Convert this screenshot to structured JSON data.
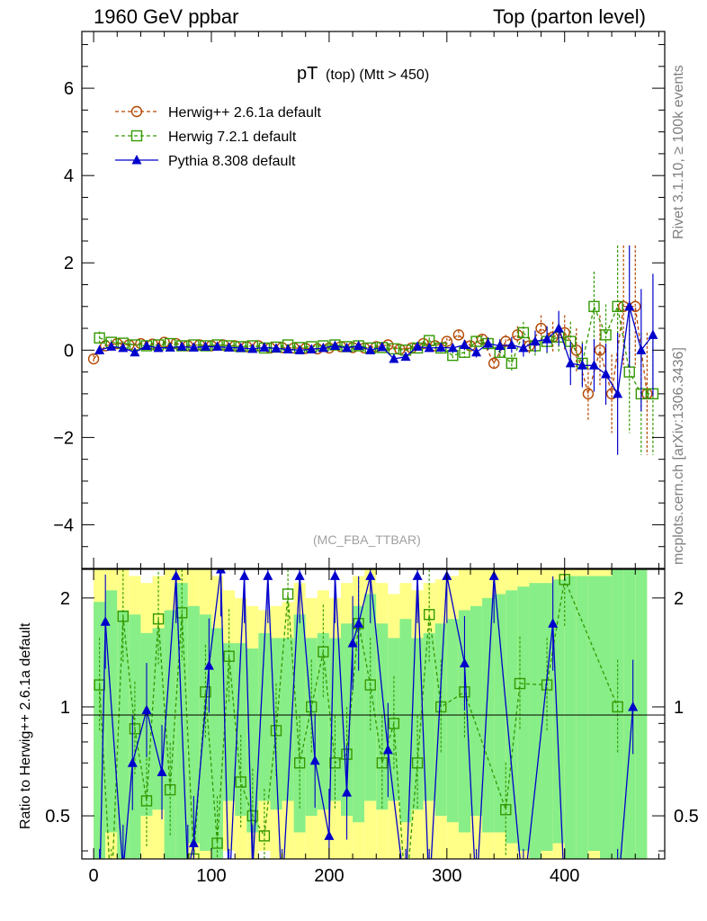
{
  "header": {
    "left": "1960 GeV ppbar",
    "right": "Top (parton level)"
  },
  "side_labels": {
    "rivet": "Rivet 3.1.10, ≥ 100k events",
    "mcplots": "mcplots.cern.ch [arXiv:1306.3436]"
  },
  "chart_data": {
    "type": "line",
    "title_main": "pT",
    "title_sub": "(top) (Mtt > 450)",
    "watermark": "(MC_FBA_TTBAR)",
    "xlim": [
      -10,
      485
    ],
    "ylim": [
      -5,
      7.3
    ],
    "xticks": [
      0,
      100,
      200,
      300,
      400
    ],
    "yticks": [
      -4,
      -2,
      0,
      2,
      4,
      6
    ],
    "ratio_ylabel": "Ratio to Herwig++ 2.6.1a default",
    "ratio_ylim": [
      0.38,
      2.4
    ],
    "ratio_yticks": [
      0.5,
      1,
      2
    ],
    "ratio_ytick_labels": [
      "0.5",
      "1",
      "2"
    ],
    "colors": {
      "herwigpp": "#b34700",
      "herwig7": "#339900",
      "pythia": "#0000cc",
      "band_yellow": "#ffff88",
      "band_green": "#88ee88"
    },
    "series": [
      {
        "name": "Herwig++ 2.6.1a default",
        "marker": "circle",
        "x": [
          0,
          10,
          20,
          30,
          40,
          50,
          60,
          70,
          80,
          90,
          100,
          110,
          120,
          130,
          140,
          150,
          160,
          170,
          180,
          190,
          200,
          210,
          220,
          230,
          240,
          250,
          260,
          270,
          280,
          290,
          300,
          310,
          320,
          330,
          340,
          350,
          360,
          370,
          380,
          390,
          400,
          410,
          420,
          430,
          440,
          450,
          460,
          470
        ],
        "y": [
          -0.2,
          0.1,
          0.15,
          0.12,
          0.15,
          0.14,
          0.18,
          0.15,
          0.1,
          0.12,
          0.1,
          0.12,
          0.1,
          0.08,
          0.1,
          0.05,
          0.06,
          0.05,
          0.04,
          0.03,
          0.05,
          0.08,
          0.06,
          0.05,
          0.08,
          0.12,
          0.02,
          0.05,
          0.15,
          0.1,
          0.2,
          0.35,
          0.1,
          0.25,
          -0.3,
          0.2,
          0.35,
          0.1,
          0.5,
          0.3,
          0.4,
          0.0,
          -1.0,
          0.0,
          -1.0,
          1.0,
          1.0,
          -1.0
        ],
        "err": [
          0.1,
          0.05,
          0.04,
          0.03,
          0.03,
          0.03,
          0.03,
          0.03,
          0.02,
          0.02,
          0.02,
          0.02,
          0.02,
          0.02,
          0.02,
          0.02,
          0.02,
          0.02,
          0.02,
          0.02,
          0.02,
          0.03,
          0.03,
          0.03,
          0.04,
          0.04,
          0.05,
          0.05,
          0.06,
          0.07,
          0.08,
          0.1,
          0.1,
          0.12,
          0.15,
          0.15,
          0.2,
          0.2,
          0.3,
          0.35,
          0.4,
          0.5,
          0.6,
          0.8,
          0.9,
          1.4,
          1.4,
          1.4
        ]
      },
      {
        "name": "Herwig 7.2.1 default",
        "marker": "square",
        "x": [
          5,
          15,
          25,
          35,
          45,
          55,
          65,
          75,
          85,
          95,
          105,
          115,
          125,
          135,
          145,
          155,
          165,
          175,
          185,
          195,
          205,
          215,
          225,
          235,
          245,
          255,
          265,
          275,
          285,
          295,
          305,
          315,
          325,
          335,
          345,
          355,
          365,
          375,
          385,
          395,
          405,
          415,
          425,
          435,
          445,
          455,
          465,
          475
        ],
        "y": [
          0.28,
          0.18,
          0.16,
          0.12,
          0.1,
          0.12,
          0.15,
          0.1,
          0.12,
          0.1,
          0.12,
          0.1,
          0.08,
          0.1,
          0.05,
          0.07,
          0.12,
          0.06,
          0.08,
          0.1,
          0.12,
          0.08,
          0.1,
          0.05,
          0.06,
          0.03,
          0.0,
          0.05,
          0.22,
          0.05,
          -0.12,
          -0.05,
          0.2,
          0.15,
          -0.05,
          -0.3,
          0.4,
          0.1,
          0.2,
          0.3,
          0.2,
          -0.3,
          1.0,
          0.35,
          1.0,
          -0.5,
          -1.0,
          -1.0
        ],
        "err": [
          0.15,
          0.06,
          0.05,
          0.04,
          0.04,
          0.03,
          0.03,
          0.03,
          0.03,
          0.03,
          0.02,
          0.02,
          0.02,
          0.02,
          0.02,
          0.02,
          0.02,
          0.02,
          0.02,
          0.03,
          0.03,
          0.03,
          0.03,
          0.04,
          0.04,
          0.05,
          0.05,
          0.06,
          0.07,
          0.08,
          0.1,
          0.12,
          0.12,
          0.14,
          0.16,
          0.2,
          0.25,
          0.25,
          0.3,
          0.35,
          0.45,
          0.5,
          0.8,
          0.7,
          1.4,
          1.4,
          1.4,
          1.4
        ]
      },
      {
        "name": "Pythia 8.308 default",
        "marker": "triangle",
        "x": [
          5,
          15,
          25,
          35,
          45,
          55,
          65,
          75,
          85,
          95,
          105,
          115,
          125,
          135,
          145,
          155,
          165,
          175,
          185,
          195,
          205,
          215,
          225,
          235,
          245,
          255,
          265,
          275,
          285,
          295,
          305,
          315,
          325,
          335,
          345,
          355,
          365,
          375,
          385,
          395,
          405,
          415,
          425,
          435,
          445,
          455,
          465,
          475
        ],
        "y": [
          0.0,
          0.08,
          0.05,
          -0.05,
          0.1,
          0.05,
          0.06,
          0.08,
          0.06,
          0.08,
          0.08,
          0.06,
          0.05,
          0.03,
          0.06,
          0.04,
          0.02,
          0.0,
          0.02,
          0.05,
          0.1,
          0.05,
          0.1,
          0.0,
          0.07,
          -0.2,
          -0.15,
          0.08,
          0.05,
          0.06,
          0.05,
          0.12,
          -0.05,
          0.15,
          0.1,
          0.12,
          0.05,
          0.2,
          0.25,
          0.5,
          -0.3,
          -0.35,
          -0.35,
          -0.55,
          -1.0,
          1.0,
          0.0,
          0.35
        ],
        "err": [
          0.1,
          0.05,
          0.04,
          0.04,
          0.04,
          0.03,
          0.03,
          0.03,
          0.03,
          0.03,
          0.02,
          0.02,
          0.02,
          0.02,
          0.02,
          0.02,
          0.02,
          0.02,
          0.02,
          0.03,
          0.03,
          0.03,
          0.04,
          0.04,
          0.05,
          0.06,
          0.06,
          0.07,
          0.08,
          0.1,
          0.1,
          0.12,
          0.12,
          0.14,
          0.15,
          0.18,
          0.2,
          0.25,
          0.3,
          0.4,
          0.5,
          0.5,
          0.6,
          0.7,
          1.4,
          1.4,
          1.4,
          1.4
        ]
      }
    ],
    "ratio_series": [
      {
        "name": "Herwig 7.2.1 default",
        "x": [
          5,
          15,
          25,
          35,
          45,
          55,
          65,
          75,
          85,
          95,
          105,
          115,
          125,
          135,
          145,
          155,
          165,
          175,
          185,
          195,
          205,
          215,
          225,
          235,
          245,
          255,
          265,
          275,
          285,
          295,
          315,
          350,
          362,
          385,
          400,
          445
        ],
        "y": [
          1.15,
          0.3,
          1.78,
          0.87,
          0.55,
          1.75,
          0.59,
          1.82,
          0.38,
          1.1,
          0.42,
          1.38,
          0.62,
          0.5,
          0.44,
          0.86,
          2.05,
          0.7,
          1.0,
          1.42,
          0.7,
          0.74,
          1.7,
          1.15,
          0.7,
          0.9,
          0.3,
          0.7,
          1.8,
          1.0,
          1.1,
          0.52,
          1.16,
          1.15,
          2.25,
          1.0
        ]
      },
      {
        "name": "Pythia 8.308 default",
        "x": [
          5,
          10,
          25,
          33,
          45,
          58,
          70,
          80,
          85,
          98,
          108,
          115,
          128,
          135,
          148,
          160,
          175,
          188,
          200,
          205,
          215,
          220,
          225,
          235,
          250,
          265,
          275,
          285,
          300,
          315,
          325,
          340,
          365,
          390,
          400,
          445,
          458
        ],
        "y": [
          0.3,
          1.72,
          0.35,
          0.7,
          0.98,
          0.66,
          2.3,
          0.35,
          0.42,
          1.3,
          2.4,
          0.3,
          2.3,
          0.35,
          2.3,
          0.3,
          2.3,
          0.71,
          0.44,
          2.3,
          0.58,
          1.5,
          1.7,
          2.3,
          0.76,
          0.3,
          2.3,
          0.3,
          2.3,
          1.32,
          0.3,
          2.3,
          0.3,
          1.7,
          0.3,
          0.3,
          1.0
        ]
      }
    ],
    "bands": {
      "x": [
        5,
        15,
        25,
        35,
        45,
        55,
        65,
        75,
        85,
        95,
        105,
        115,
        125,
        135,
        145,
        155,
        165,
        175,
        185,
        195,
        205,
        215,
        225,
        235,
        245,
        255,
        265,
        275,
        285,
        295,
        305,
        315,
        325,
        335,
        345,
        355,
        365,
        375,
        385,
        395,
        405,
        415,
        425,
        435,
        445,
        455,
        465
      ],
      "green_lo": [
        0.38,
        0.45,
        0.38,
        0.38,
        0.5,
        0.52,
        0.38,
        0.38,
        0.42,
        0.4,
        0.38,
        0.55,
        0.5,
        0.45,
        0.55,
        0.52,
        0.55,
        0.45,
        0.5,
        0.52,
        0.55,
        0.5,
        0.48,
        0.55,
        0.52,
        0.55,
        0.48,
        0.52,
        0.55,
        0.5,
        0.48,
        0.45,
        0.5,
        0.45,
        0.45,
        0.42,
        0.4,
        0.38,
        0.4,
        0.42,
        0.38,
        0.38,
        0.4,
        0.38,
        0.38,
        0.38,
        0.38
      ],
      "green_hi": [
        1.95,
        2.1,
        1.85,
        1.8,
        1.6,
        1.65,
        1.85,
        2.2,
        1.9,
        1.8,
        1.65,
        1.5,
        1.5,
        1.45,
        1.6,
        1.55,
        1.55,
        1.8,
        1.55,
        1.6,
        1.55,
        1.7,
        1.9,
        2.05,
        1.7,
        1.55,
        1.75,
        1.55,
        1.6,
        1.7,
        1.75,
        1.85,
        1.9,
        2.0,
        2.05,
        2.1,
        2.15,
        2.2,
        2.2,
        2.25,
        2.3,
        2.3,
        2.3,
        2.3,
        2.4,
        2.4,
        2.4
      ],
      "yellow_lo": [
        0.38,
        0.38,
        0.38,
        0.38,
        0.38,
        0.38,
        0.38,
        0.38,
        0.38,
        0.38,
        0.38,
        0.4,
        0.38,
        0.38,
        0.4,
        0.38,
        0.38,
        0.38,
        0.38,
        0.38,
        0.38,
        0.38,
        0.38,
        0.38,
        0.38,
        0.38,
        0.38,
        0.38,
        0.38,
        0.38,
        0.38,
        0.38,
        0.38,
        0.38,
        0.38,
        0.38,
        0.38,
        0.38,
        0.38,
        0.38,
        0.38,
        0.38,
        0.38,
        0.38,
        0.38,
        0.38,
        0.38
      ],
      "yellow_hi": [
        2.4,
        2.4,
        2.4,
        2.3,
        2.2,
        2.3,
        2.4,
        2.4,
        2.4,
        2.4,
        2.3,
        2.1,
        2.0,
        1.9,
        1.85,
        1.9,
        1.95,
        2.2,
        2.0,
        2.1,
        2.0,
        2.2,
        2.3,
        2.4,
        2.2,
        2.05,
        2.2,
        2.1,
        2.2,
        2.25,
        2.3,
        2.4,
        2.4,
        2.4,
        2.4,
        2.4,
        2.4,
        2.4,
        2.4,
        2.4,
        2.4,
        2.4,
        2.4,
        2.4,
        2.4,
        2.4,
        2.4
      ]
    }
  }
}
